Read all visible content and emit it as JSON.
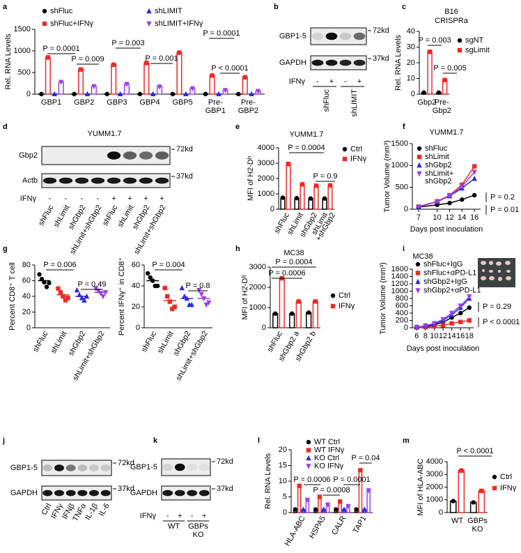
{
  "chart_data": [
    {
      "type": "bar",
      "panel": "a",
      "y_label": "Rel. RNA Levels",
      "categories": [
        "GBP1",
        "GBP2",
        "GBP3",
        "GBP4",
        "GBP5",
        [
          "Pre-",
          "GBP1"
        ],
        [
          "Pre-",
          "GBP2"
        ]
      ],
      "series": [
        {
          "name": "shFluc",
          "color": "#000000",
          "marker": "circle",
          "values": [
            2,
            2,
            2,
            2,
            2,
            2,
            2
          ]
        },
        {
          "name": "shFluc+IFNγ",
          "color": "#ee2a24",
          "marker": "square",
          "values": [
            850,
            570,
            680,
            720,
            960,
            430,
            390
          ]
        },
        {
          "name": "shLIMIT",
          "color": "#2a2ae0",
          "marker": "triangle",
          "values": [
            3,
            3,
            3,
            3,
            3,
            3,
            3
          ]
        },
        {
          "name": "shLIMIT+IFNγ",
          "color": "#9a40e8",
          "marker": "triangle-down",
          "values": [
            280,
            180,
            230,
            170,
            130,
            90,
            70
          ]
        }
      ],
      "ylim": [
        0,
        1500
      ],
      "yticks": [
        0,
        500,
        1000,
        1500
      ],
      "annotations": [
        "P = 0.0001",
        "P = 0.009",
        "P = 0.003",
        "P = 0.001",
        "P = 0.0001",
        "P < 0.0001"
      ]
    },
    {
      "type": "bar",
      "panel": "c",
      "title": [
        "B16",
        "CRISPRa"
      ],
      "y_label": "Rel. RNA Levels",
      "categories": [
        "Gbp2",
        [
          "Pre-",
          "Gbp2"
        ]
      ],
      "series": [
        {
          "name": "sgNT",
          "color": "#000000",
          "marker": "circle",
          "values": [
            1,
            1
          ]
        },
        {
          "name": "sgLimit",
          "color": "#ee2a24",
          "marker": "square",
          "values": [
            27,
            9
          ]
        }
      ],
      "ylim": [
        0,
        40
      ],
      "yticks": [
        0,
        10,
        20,
        30,
        40
      ],
      "annotations": [
        "P = 0.003",
        "P = 0.005"
      ]
    },
    {
      "type": "bar",
      "panel": "e",
      "title": "YUMM1.7",
      "y_label": "MFI of H2-Dᵇ",
      "rotated_labels": true,
      "categories": [
        "shFluc",
        "shLimit",
        "shGbp2",
        [
          "shLimit",
          "+shGbp2"
        ]
      ],
      "series": [
        {
          "name": "Ctrl",
          "color": "#000000",
          "marker": "circle",
          "values": [
            750,
            720,
            700,
            700
          ]
        },
        {
          "name": "IFNγ",
          "color": "#ee2a24",
          "marker": "square",
          "values": [
            2950,
            1620,
            1530,
            1550
          ]
        }
      ],
      "ylim": [
        0,
        4000
      ],
      "yticks": [
        0,
        1000,
        2000,
        3000,
        4000
      ],
      "annotations": [
        "P = 0.0004",
        "P = 0.9"
      ]
    },
    {
      "type": "line",
      "panel": "f",
      "title": "YUMM1.7",
      "y_label": "Tumor Volume (mm³)",
      "x_label": "Days post inoculation",
      "x": [
        7,
        10,
        12,
        14,
        16
      ],
      "xlim": [
        6,
        17
      ],
      "xticks": [
        7,
        10,
        12,
        14,
        16
      ],
      "series": [
        {
          "name": "shFluc",
          "color": "#000000",
          "marker": "circle",
          "values": [
            50,
            100,
            140,
            220,
            320
          ]
        },
        {
          "name": "shLimit",
          "color": "#ee2a24",
          "marker": "square",
          "values": [
            60,
            180,
            320,
            560,
            980
          ]
        },
        {
          "name": "shGbp2",
          "color": "#2a2ae0",
          "marker": "triangle",
          "values": [
            55,
            170,
            300,
            480,
            700
          ]
        },
        {
          "name": [
            "shLimit+",
            "shGbp2"
          ],
          "color": "#9a40e8",
          "marker": "triangle-down",
          "values": [
            60,
            170,
            310,
            520,
            850
          ]
        }
      ],
      "ylim": [
        0,
        1500
      ],
      "yticks": [
        0,
        500,
        1000,
        1500
      ],
      "annotations": [
        "P = 0.2",
        "P = 0.01"
      ]
    },
    {
      "type": "dot",
      "panel": "g",
      "y_label": "Percent CD8⁺ T cell",
      "rotated_labels": true,
      "categories": [
        "shFluc",
        "shLimit",
        "shGbp2",
        "shLimit+shGbp2"
      ],
      "colors": [
        "#000000",
        "#ee2a24",
        "#2a2ae0",
        "#9a40e8"
      ],
      "markers": [
        "circle",
        "square",
        "triangle",
        "triangle-down"
      ],
      "points": [
        [
          68,
          62,
          58,
          52,
          57
        ],
        [
          50,
          45,
          40,
          35,
          38
        ],
        [
          48,
          42,
          38,
          35,
          40
        ],
        [
          50,
          47,
          44,
          40,
          45
        ]
      ],
      "means": [
        60,
        42,
        40,
        45
      ],
      "ylim": [
        0,
        80
      ],
      "yticks": [
        0,
        20,
        40,
        60,
        80
      ],
      "annotations": [
        "P = 0.006",
        "P = 0.49"
      ]
    },
    {
      "type": "dot",
      "y_label": "Percent IFNγ⁺ in CD8⁺",
      "rotated_labels": true,
      "categories": [
        "shFluc",
        "shLimit",
        "shGbp2",
        "shLimit+shGbp2"
      ],
      "colors": [
        "#000000",
        "#ee2a24",
        "#2a2ae0",
        "#9a40e8"
      ],
      "markers": [
        "circle",
        "square",
        "triangle",
        "triangle-down"
      ],
      "points": [
        [
          52,
          48,
          45,
          40,
          40
        ],
        [
          38,
          30,
          25,
          18,
          20
        ],
        [
          38,
          30,
          28,
          22,
          22
        ],
        [
          36,
          32,
          28,
          22,
          24
        ]
      ],
      "means": [
        45,
        26,
        28,
        28
      ],
      "ylim": [
        0,
        60
      ],
      "yticks": [
        0,
        20,
        40,
        60
      ],
      "annotations": [
        "P = 0.004",
        "P = 0.8"
      ]
    },
    {
      "type": "bar",
      "panel": "h",
      "title": "MC38",
      "y_label": "MFI of H2-Dᵇ",
      "rotated_labels": true,
      "categories": [
        "shFluc",
        "shGbp2 a",
        "shGbp2 b"
      ],
      "series": [
        {
          "name": "Ctrl",
          "color": "#000000",
          "marker": "circle",
          "values": [
            700,
            700,
            750
          ]
        },
        {
          "name": "IFNγ",
          "color": "#ee2a24",
          "marker": "square",
          "values": [
            2450,
            1300,
            1300
          ]
        }
      ],
      "ylim": [
        0,
        3000
      ],
      "yticks": [
        0,
        1000,
        2000,
        3000
      ],
      "annotations": [
        "P = 0.0004",
        "P = 0.0006"
      ]
    },
    {
      "type": "line",
      "panel": "i",
      "title": "MC38",
      "y_label": "Tumor Volume (mm³)",
      "x_label": "Days post inoculation",
      "x": [
        6,
        8,
        10,
        12,
        14,
        16,
        18
      ],
      "xlim": [
        5,
        19
      ],
      "xticks": [
        6,
        8,
        10,
        12,
        14,
        16,
        18
      ],
      "series": [
        {
          "name": "shFluc+IgG",
          "color": "#000000",
          "marker": "circle",
          "values": [
            20,
            40,
            80,
            150,
            280,
            400,
            550
          ]
        },
        {
          "name": "shFluc+αPD-L1",
          "color": "#ee2a24",
          "marker": "square",
          "values": [
            10,
            20,
            40,
            70,
            120,
            160,
            200
          ]
        },
        {
          "name": "shGbp2+IgG",
          "color": "#2a2ae0",
          "marker": "triangle",
          "values": [
            20,
            50,
            100,
            200,
            350,
            550,
            800
          ]
        },
        {
          "name": "shGbp2+αPD-L1",
          "color": "#9a40e8",
          "marker": "triangle-down",
          "values": [
            20,
            60,
            120,
            230,
            400,
            600,
            850
          ]
        }
      ],
      "ylim": [
        0,
        1600
      ],
      "yticks": [
        0,
        200,
        400,
        600,
        800,
        1000,
        1200,
        1400,
        1600
      ],
      "annotations": [
        "P = 0.29",
        "P < 0.0001"
      ]
    },
    {
      "type": "bar",
      "panel": "l",
      "y_label": "Rel. RNA Levels",
      "rotated_labels": true,
      "categories": [
        "HLA-ABC",
        "HSPA5",
        "CALR",
        "TAP1"
      ],
      "series": [
        {
          "name": "WT Ctrl",
          "color": "#000000",
          "marker": "circle",
          "values": [
            1,
            1,
            1,
            1
          ]
        },
        {
          "name": "WT IFNγ",
          "color": "#ee2a24",
          "marker": "square",
          "values": [
            8.5,
            5,
            3.5,
            13.5
          ]
        },
        {
          "name": "KO Ctrl",
          "color": "#2a2ae0",
          "marker": "triangle",
          "values": [
            1,
            1,
            1,
            1
          ]
        },
        {
          "name": "KO IFNγ",
          "color": "#9a40e8",
          "marker": "triangle-down",
          "values": [
            4,
            2.5,
            2,
            7
          ]
        }
      ],
      "ylim": [
        0,
        20
      ],
      "yticks": [
        0,
        5,
        10,
        15,
        20
      ],
      "annotations": [
        "P = 0.0006",
        "P = 0.0008",
        "P = 0.0001",
        "P = 0.04"
      ]
    },
    {
      "type": "bar",
      "panel": "m",
      "y_label": "MFI of HLA-ABC",
      "categories": [
        "WT",
        [
          "GBPs",
          "KO"
        ]
      ],
      "series": [
        {
          "name": "Ctrl",
          "color": "#000000",
          "marker": "circle",
          "values": [
            900,
            800
          ]
        },
        {
          "name": "IFNγ",
          "color": "#ee2a24",
          "marker": "square",
          "values": [
            3300,
            1700
          ]
        }
      ],
      "ylim": [
        0,
        4000
      ],
      "yticks": [
        0,
        1000,
        2000,
        3000,
        4000
      ],
      "annotations": [
        "P < 0.0001"
      ]
    }
  ],
  "blots": [
    {
      "panel": "b",
      "bands": [
        {
          "label": "GBP1-5",
          "marker": "72kd"
        },
        {
          "label": "GAPDH",
          "marker": "37kd"
        }
      ],
      "treatment": "IFNγ",
      "signs": [
        "-",
        "+",
        "-",
        "+"
      ],
      "groups": [
        "shFluc",
        "shLIMIT"
      ]
    },
    {
      "panel": "d",
      "title": "YUMM1.7",
      "bands": [
        {
          "label": "Gbp2",
          "marker": "72kd"
        },
        {
          "label": "Actb",
          "marker": "37kd"
        }
      ],
      "treatment": "IFNγ",
      "signs": [
        "-",
        "-",
        "-",
        "-",
        "+",
        "+",
        "+",
        "+"
      ],
      "lanes": [
        "shFluc",
        "shLimit",
        "shGbp2",
        "shLimit+shGbp2",
        "shFluc",
        "shLimit",
        "shGbp2",
        "shLimit+shGbp2"
      ]
    },
    {
      "panel": "j",
      "bands": [
        {
          "label": "GBP1-5",
          "marker": "72kd"
        },
        {
          "label": "GAPDH",
          "marker": "37kd"
        }
      ],
      "lanes": [
        "Ctrl",
        "IFNγ",
        "IFNβ",
        "TNFα",
        "IL-1β",
        "IL-6"
      ]
    },
    {
      "panel": "k",
      "bands": [
        {
          "label": "GBP1-5",
          "marker": "72kd"
        },
        {
          "label": "GAPDH",
          "marker": "37kd"
        }
      ],
      "treatment": "IFNγ",
      "signs": [
        "-",
        "+",
        "-",
        "+"
      ],
      "groups": [
        "WT",
        [
          "GBPs",
          "KO"
        ]
      ]
    }
  ]
}
